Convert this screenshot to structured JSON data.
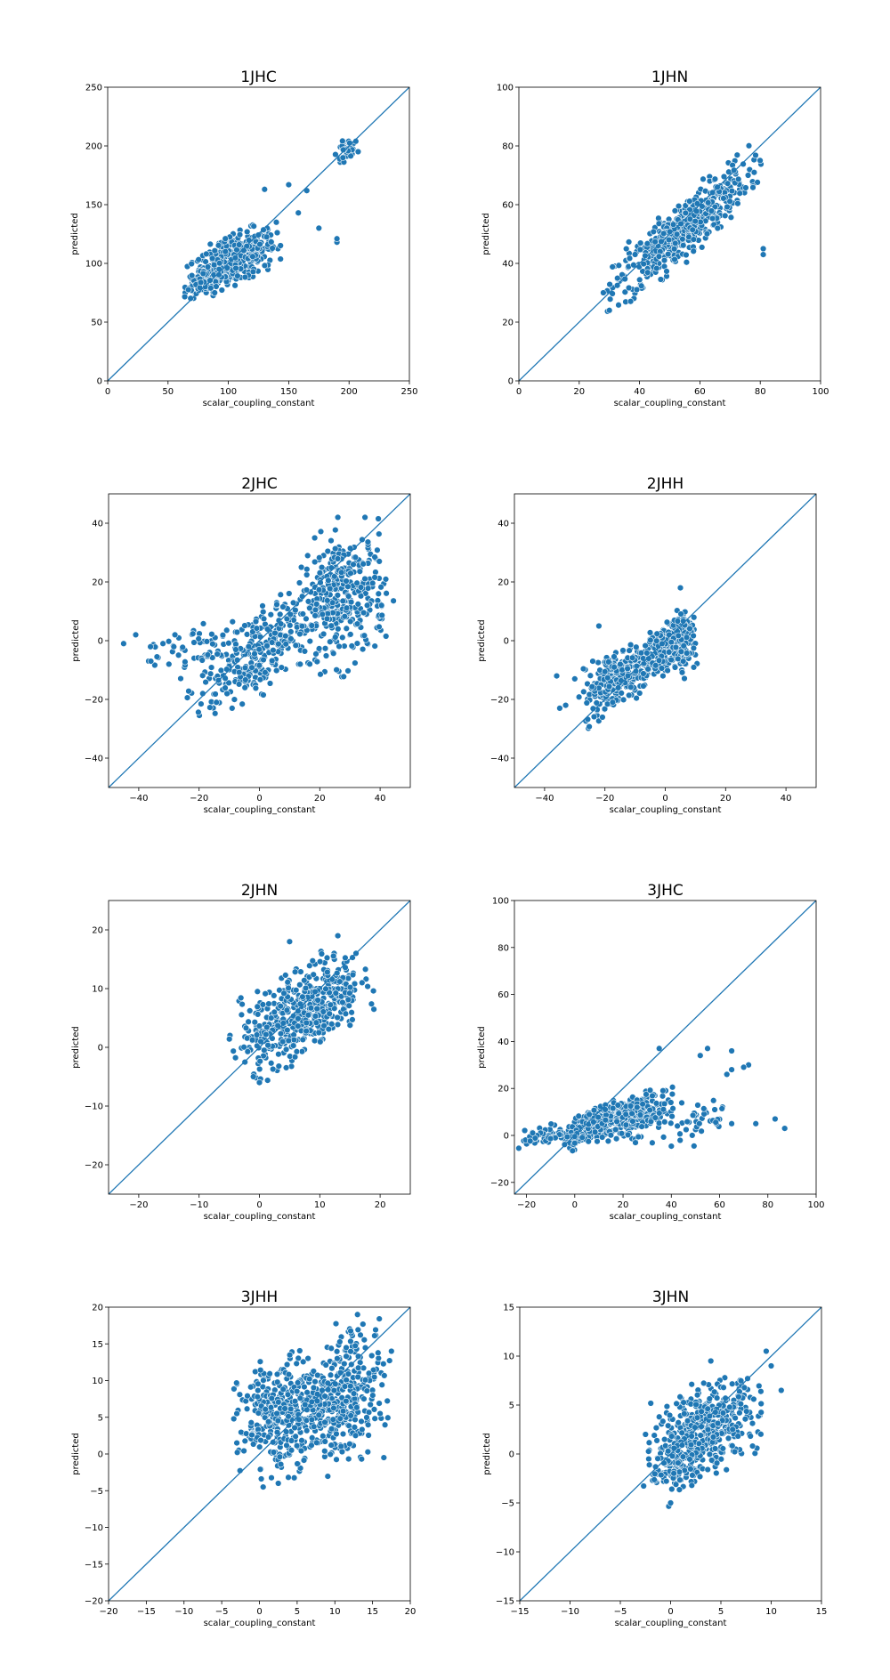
{
  "chart_data": [
    {
      "type": "scatter",
      "title": "1JHC",
      "xlabel": "scalar_coupling_constant",
      "ylabel": "predicted",
      "xlim": [
        0,
        250
      ],
      "ylim": [
        0,
        250
      ],
      "xticks": [
        "0",
        "50",
        "100",
        "150",
        "200",
        "250"
      ],
      "yticks": [
        "0",
        "50",
        "100",
        "150",
        "200",
        "250"
      ],
      "reference_line": "y = x",
      "clusters": [
        {
          "center": [
            105,
            103
          ],
          "spread": [
            17,
            10
          ],
          "slope": 0.42,
          "count": 420
        },
        {
          "center": [
            82,
            88
          ],
          "spread": [
            8,
            6
          ],
          "slope": 0.4,
          "count": 80
        },
        {
          "center": [
            198,
            197
          ],
          "spread": [
            4,
            4
          ],
          "slope": 0.5,
          "count": 40
        }
      ],
      "outliers": [
        [
          190,
          118
        ],
        [
          190,
          121
        ],
        [
          175,
          130
        ],
        [
          165,
          162
        ],
        [
          150,
          167
        ],
        [
          130,
          163
        ],
        [
          158,
          143
        ]
      ]
    },
    {
      "type": "scatter",
      "title": "1JHN",
      "xlabel": "scalar_coupling_constant",
      "ylabel": "predicted",
      "xlim": [
        0,
        100
      ],
      "ylim": [
        0,
        100
      ],
      "xticks": [
        "0",
        "20",
        "40",
        "60",
        "80",
        "100"
      ],
      "yticks": [
        "0",
        "20",
        "40",
        "60",
        "80",
        "100"
      ],
      "reference_line": "y = x",
      "clusters": [
        {
          "center": [
            54,
            51
          ],
          "spread": [
            11,
            5
          ],
          "slope": 0.85,
          "count": 480
        }
      ],
      "outliers": [
        [
          81,
          45
        ],
        [
          81,
          43
        ],
        [
          78,
          71
        ],
        [
          76,
          70
        ],
        [
          28,
          30
        ],
        [
          30,
          24
        ]
      ]
    },
    {
      "type": "scatter",
      "title": "2JHC",
      "xlabel": "scalar_coupling_constant",
      "ylabel": "predicted",
      "xlim": [
        -50,
        50
      ],
      "ylim": [
        -50,
        50
      ],
      "xticks": [
        "−40",
        "−20",
        "0",
        "20",
        "40"
      ],
      "yticks": [
        "−40",
        "−20",
        "0",
        "20",
        "40"
      ],
      "reference_line": "y = x",
      "clusters": [
        {
          "center": [
            28,
            14
          ],
          "spread": [
            7,
            11
          ],
          "slope": 0.2,
          "count": 320
        },
        {
          "center": [
            0,
            -3
          ],
          "spread": [
            10,
            7
          ],
          "slope": 0.6,
          "count": 300
        },
        {
          "center": [
            -22,
            -3
          ],
          "spread": [
            8,
            4
          ],
          "slope": 0.1,
          "count": 50
        }
      ],
      "outliers": [
        [
          -45,
          -1
        ],
        [
          -41,
          2
        ],
        [
          -36,
          -7
        ],
        [
          -30,
          -8
        ],
        [
          -28,
          2
        ],
        [
          35,
          42
        ],
        [
          26,
          42
        ]
      ]
    },
    {
      "type": "scatter",
      "title": "2JHH",
      "xlabel": "scalar_coupling_constant",
      "ylabel": "predicted",
      "xlim": [
        -50,
        50
      ],
      "ylim": [
        -50,
        50
      ],
      "xticks": [
        "−40",
        "−20",
        "0",
        "20",
        "40"
      ],
      "yticks": [
        "−40",
        "−20",
        "0",
        "20",
        "40"
      ],
      "reference_line": "y = x",
      "clusters": [
        {
          "center": [
            -17,
            -13
          ],
          "spread": [
            5,
            5
          ],
          "slope": 0.7,
          "count": 240
        },
        {
          "center": [
            -2,
            -4
          ],
          "spread": [
            5,
            4
          ],
          "slope": 0.8,
          "count": 200
        },
        {
          "center": [
            6,
            0
          ],
          "spread": [
            2,
            6
          ],
          "slope": 0.3,
          "count": 100
        }
      ],
      "outliers": [
        [
          -35,
          -23
        ],
        [
          -33,
          -22
        ],
        [
          -30,
          -13
        ],
        [
          -36,
          -12
        ],
        [
          5,
          18
        ],
        [
          -22,
          5
        ]
      ]
    },
    {
      "type": "scatter",
      "title": "2JHN",
      "xlabel": "scalar_coupling_constant",
      "ylabel": "predicted",
      "xlim": [
        -25,
        25
      ],
      "ylim": [
        -25,
        25
      ],
      "xticks": [
        "−20",
        "−10",
        "0",
        "10",
        "20"
      ],
      "yticks": [
        "−20",
        "−10",
        "0",
        "10",
        "20"
      ],
      "reference_line": "y = x",
      "clusters": [
        {
          "center": [
            7,
            6
          ],
          "spread": [
            5,
            3.6
          ],
          "slope": 0.55,
          "count": 500
        }
      ],
      "outliers": [
        [
          5,
          18
        ],
        [
          13,
          19
        ],
        [
          -1,
          -5
        ],
        [
          0,
          -6
        ],
        [
          16,
          16
        ],
        [
          17,
          11
        ]
      ]
    },
    {
      "type": "scatter",
      "title": "3JHC",
      "xlabel": "scalar_coupling_constant",
      "ylabel": "predicted",
      "xlim": [
        -25,
        100
      ],
      "ylim": [
        -25,
        100
      ],
      "xticks": [
        "−20",
        "0",
        "20",
        "40",
        "60",
        "80",
        "100"
      ],
      "yticks": [
        "−20",
        "0",
        "20",
        "40",
        "60",
        "80",
        "100"
      ],
      "reference_line": "y = x",
      "clusters": [
        {
          "center": [
            8,
            5
          ],
          "spread": [
            6,
            3
          ],
          "slope": 0.5,
          "count": 320
        },
        {
          "center": [
            24,
            8
          ],
          "spread": [
            7,
            4
          ],
          "slope": 0.25,
          "count": 220
        },
        {
          "center": [
            -12,
            0
          ],
          "spread": [
            5,
            2
          ],
          "slope": 0.2,
          "count": 50
        },
        {
          "center": [
            45,
            6
          ],
          "spread": [
            12,
            6
          ],
          "slope": 0.1,
          "count": 60
        }
      ],
      "outliers": [
        [
          83,
          7
        ],
        [
          87,
          3
        ],
        [
          65,
          36
        ],
        [
          72,
          30
        ],
        [
          70,
          29
        ],
        [
          55,
          37
        ],
        [
          35,
          37
        ],
        [
          63,
          26
        ],
        [
          65,
          28
        ],
        [
          58,
          11
        ],
        [
          65,
          5
        ],
        [
          75,
          5
        ],
        [
          52,
          34
        ]
      ]
    },
    {
      "type": "scatter",
      "title": "3JHH",
      "xlabel": "scalar_coupling_constant",
      "ylabel": "predicted",
      "xlim": [
        -20,
        20
      ],
      "ylim": [
        -20,
        20
      ],
      "xticks": [
        "−20",
        "−15",
        "−10",
        "−5",
        "0",
        "5",
        "10",
        "15",
        "20"
      ],
      "yticks": [
        "−20",
        "−15",
        "−10",
        "−5",
        "0",
        "5",
        "10",
        "15",
        "20"
      ],
      "reference_line": "y = x",
      "clusters": [
        {
          "center": [
            2.5,
            5.2
          ],
          "spread": [
            2.6,
            3.8
          ],
          "slope": 0.15,
          "count": 280
        },
        {
          "center": [
            12,
            8.5
          ],
          "spread": [
            2.2,
            4.3
          ],
          "slope": 0.5,
          "count": 260
        },
        {
          "center": [
            7,
            6
          ],
          "spread": [
            2.5,
            3
          ],
          "slope": 0.2,
          "count": 120
        }
      ],
      "outliers": [
        [
          16.5,
          -0.5
        ],
        [
          17.5,
          14
        ],
        [
          13,
          19
        ],
        [
          -3,
          5.5
        ],
        [
          -3,
          1.5
        ],
        [
          2.5,
          -4
        ],
        [
          0.5,
          -4.5
        ],
        [
          16,
          5.5
        ]
      ]
    },
    {
      "type": "scatter",
      "title": "3JHN",
      "xlabel": "scalar_coupling_constant",
      "ylabel": "predicted",
      "xlim": [
        -15,
        15
      ],
      "ylim": [
        -15,
        15
      ],
      "xticks": [
        "−15",
        "−10",
        "−5",
        "0",
        "5",
        "10",
        "15"
      ],
      "yticks": [
        "−15",
        "−10",
        "−5",
        "0",
        "5",
        "10",
        "15"
      ],
      "reference_line": "y = x",
      "clusters": [
        {
          "center": [
            3.5,
            2.6
          ],
          "spread": [
            2.6,
            2.1
          ],
          "slope": 0.35,
          "count": 440
        },
        {
          "center": [
            0.3,
            -1.5
          ],
          "spread": [
            1.2,
            1.6
          ],
          "slope": 0.3,
          "count": 80
        }
      ],
      "outliers": [
        [
          0,
          -5
        ],
        [
          -2.5,
          2
        ],
        [
          9.5,
          10.5
        ],
        [
          10,
          9
        ],
        [
          4,
          9.5
        ],
        [
          11,
          6.5
        ]
      ]
    }
  ]
}
